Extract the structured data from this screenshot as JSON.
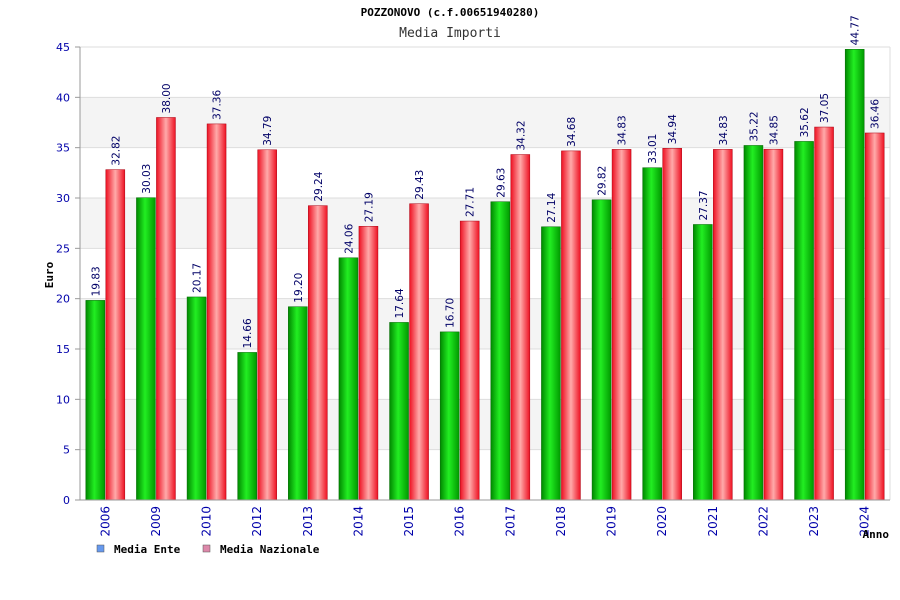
{
  "chart_data": {
    "type": "bar",
    "title": "POZZONOVO (c.f.00651940280)",
    "subtitle": "Media Importi",
    "xlabel": "Anno",
    "ylabel": "Euro",
    "ylim": [
      0,
      45
    ],
    "yticks": [
      0,
      5,
      10,
      15,
      20,
      25,
      30,
      35,
      40,
      45
    ],
    "grid": true,
    "legend_position": "bottom-left",
    "categories": [
      "2006",
      "2009",
      "2010",
      "2012",
      "2013",
      "2014",
      "2015",
      "2016",
      "2017",
      "2018",
      "2019",
      "2020",
      "2021",
      "2022",
      "2023",
      "2024"
    ],
    "series": [
      {
        "name": "Media Ente",
        "color": "#00bb00",
        "legend_color": "#6699ee",
        "values": [
          19.83,
          30.03,
          20.17,
          14.66,
          19.2,
          24.06,
          17.64,
          16.7,
          29.63,
          27.14,
          29.82,
          33.01,
          27.37,
          35.22,
          35.62,
          44.77
        ],
        "labels": [
          "19.83",
          "30.03",
          "20.17",
          "14.66",
          "19.20",
          "24.06",
          "17.64",
          "16.70",
          "29.63",
          "27.14",
          "29.82",
          "33.01",
          "27.37",
          "35.22",
          "35.62",
          "44.77"
        ]
      },
      {
        "name": "Media Nazionale",
        "color": "#ee2233",
        "legend_color": "#dd88aa",
        "values": [
          32.82,
          38.0,
          37.36,
          34.79,
          29.24,
          27.19,
          29.43,
          27.71,
          34.32,
          34.68,
          34.83,
          34.94,
          34.83,
          34.85,
          37.05,
          36.46
        ],
        "labels": [
          "32.82",
          "38.00",
          "37.36",
          "34.79",
          "29.24",
          "27.19",
          "29.43",
          "27.71",
          "34.32",
          "34.68",
          "34.83",
          "34.94",
          "34.83",
          "34.85",
          "37.05",
          "36.46"
        ]
      }
    ]
  }
}
